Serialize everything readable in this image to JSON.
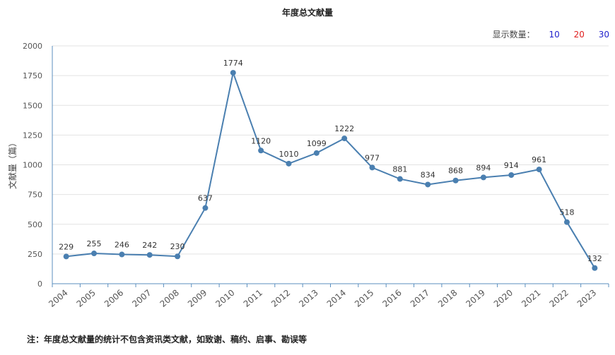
{
  "chart_title": "年度总文献量",
  "count_selector": {
    "label": "显示数量：",
    "options": [
      {
        "label": "10",
        "color": "#1f1fcc"
      },
      {
        "label": "20",
        "color": "#e02020"
      },
      {
        "label": "30",
        "color": "#1f1fcc"
      }
    ]
  },
  "footnote": "注：年度总文献量的统计不包含资讯类文献，如致谢、稿约、启事、勘误等",
  "chart_data": {
    "type": "line",
    "title": "年度总文献量",
    "xlabel": "",
    "ylabel": "文献量（篇）",
    "ylim": [
      0,
      2000
    ],
    "yticks": [
      0,
      250,
      500,
      750,
      1000,
      1250,
      1500,
      1750,
      2000
    ],
    "grid": true,
    "line_color": "#4a7fb0",
    "x": [
      "2004",
      "2005",
      "2006",
      "2007",
      "2008",
      "2009",
      "2010",
      "2011",
      "2012",
      "2013",
      "2014",
      "2015",
      "2016",
      "2017",
      "2018",
      "2019",
      "2020",
      "2021",
      "2022",
      "2023"
    ],
    "series": [
      {
        "values": [
          229,
          255,
          246,
          242,
          230,
          637,
          1774,
          1120,
          1010,
          1099,
          1222,
          977,
          881,
          834,
          868,
          894,
          914,
          961,
          518,
          132
        ]
      }
    ]
  }
}
